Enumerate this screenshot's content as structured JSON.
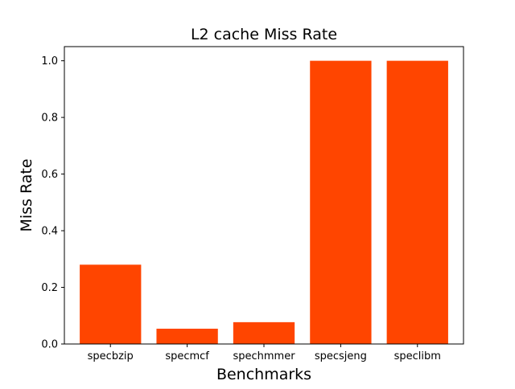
{
  "chart_data": {
    "type": "bar",
    "title": "L2 cache Miss Rate",
    "xlabel": "Benchmarks",
    "ylabel": "Miss Rate",
    "categories": [
      "specbzip",
      "specmcf",
      "spechmmer",
      "specsjeng",
      "speclibm"
    ],
    "values": [
      0.28,
      0.054,
      0.077,
      1.0,
      1.0
    ],
    "ylim": [
      0,
      1.05
    ],
    "yticks": [
      0.0,
      0.2,
      0.4,
      0.6,
      0.8,
      1.0
    ],
    "ytick_labels": [
      "0.0",
      "0.2",
      "0.4",
      "0.6",
      "0.8",
      "1.0"
    ],
    "bar_color": "#ff4500",
    "grid": false,
    "legend": false
  }
}
